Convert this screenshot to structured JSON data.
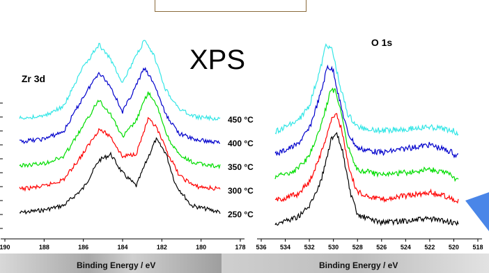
{
  "main_title": "XPS",
  "chart_data": [
    {
      "type": "line",
      "panel_label": "Zr 3d",
      "xlabel": "Binding Energy / eV",
      "ylabel": "",
      "xlim": [
        190,
        178
      ],
      "x_reversed": true,
      "xticks": [
        "190",
        "188",
        "186",
        "184",
        "182",
        "180",
        "178"
      ],
      "grid": false,
      "legend": "inline labels right of curves",
      "series": [
        {
          "name": "250 °C",
          "color": "#000000",
          "offset": 0,
          "points": [
            [
              190,
              0.0
            ],
            [
              188,
              0.06
            ],
            [
              187,
              0.12
            ],
            [
              186,
              0.35
            ],
            [
              185.2,
              0.72
            ],
            [
              184.6,
              0.8
            ],
            [
              184,
              0.55
            ],
            [
              183.3,
              0.38
            ],
            [
              182.8,
              0.7
            ],
            [
              182.3,
              1.0
            ],
            [
              181.8,
              0.82
            ],
            [
              181.3,
              0.4
            ],
            [
              180.5,
              0.12
            ],
            [
              179,
              0.03
            ],
            [
              178.5,
              0.0
            ]
          ]
        },
        {
          "name": "300 °C",
          "color": "#ff0000",
          "offset": 1,
          "points": [
            [
              190,
              0.0
            ],
            [
              188,
              0.06
            ],
            [
              187,
              0.15
            ],
            [
              186,
              0.5
            ],
            [
              185.2,
              0.82
            ],
            [
              184.6,
              0.72
            ],
            [
              184,
              0.45
            ],
            [
              183.3,
              0.5
            ],
            [
              182.7,
              0.95
            ],
            [
              182.3,
              0.85
            ],
            [
              181.7,
              0.5
            ],
            [
              181.1,
              0.2
            ],
            [
              180.3,
              0.06
            ],
            [
              179,
              0.02
            ],
            [
              178.5,
              0.0
            ]
          ]
        },
        {
          "name": "350 °C",
          "color": "#00dd00",
          "offset": 2,
          "points": [
            [
              190,
              0.0
            ],
            [
              188,
              0.05
            ],
            [
              187,
              0.14
            ],
            [
              186,
              0.55
            ],
            [
              185.2,
              0.9
            ],
            [
              184.6,
              0.7
            ],
            [
              184,
              0.4
            ],
            [
              183.3,
              0.62
            ],
            [
              182.7,
              1.0
            ],
            [
              182.2,
              0.78
            ],
            [
              181.7,
              0.4
            ],
            [
              181.1,
              0.15
            ],
            [
              180.3,
              0.05
            ],
            [
              179,
              0.01
            ],
            [
              178.5,
              0.0
            ]
          ]
        },
        {
          "name": "400 °C",
          "color": "#0000cc",
          "offset": 3,
          "points": [
            [
              190,
              0.0
            ],
            [
              188,
              0.06
            ],
            [
              187,
              0.16
            ],
            [
              186,
              0.62
            ],
            [
              185.2,
              0.95
            ],
            [
              184.6,
              0.75
            ],
            [
              184,
              0.42
            ],
            [
              183.4,
              0.72
            ],
            [
              182.9,
              1.0
            ],
            [
              182.4,
              0.8
            ],
            [
              181.8,
              0.38
            ],
            [
              181.1,
              0.13
            ],
            [
              180.3,
              0.05
            ],
            [
              179,
              0.01
            ],
            [
              178.5,
              0.0
            ]
          ]
        },
        {
          "name": "450 °C",
          "color": "#33e6e6",
          "offset": 4,
          "points": [
            [
              190,
              0.0
            ],
            [
              188,
              0.05
            ],
            [
              187,
              0.18
            ],
            [
              186,
              0.7
            ],
            [
              185.2,
              1.0
            ],
            [
              184.6,
              0.8
            ],
            [
              184,
              0.5
            ],
            [
              183.4,
              0.8
            ],
            [
              182.9,
              1.05
            ],
            [
              182.4,
              0.85
            ],
            [
              181.8,
              0.4
            ],
            [
              181.1,
              0.14
            ],
            [
              180.3,
              0.04
            ],
            [
              179,
              0.01
            ],
            [
              178.5,
              0.0
            ]
          ]
        }
      ]
    },
    {
      "type": "line",
      "panel_label": "O 1s",
      "xlabel": "Binding Energy / eV",
      "ylabel": "",
      "xlim": [
        536,
        518
      ],
      "x_reversed": true,
      "xticks": [
        "536",
        "534",
        "532",
        "530",
        "528",
        "526",
        "524",
        "522",
        "520",
        "518"
      ],
      "grid": false,
      "series": [
        {
          "name": "250 °C",
          "color": "#000000",
          "offset": 0,
          "points": [
            [
              535,
              0.0
            ],
            [
              533,
              0.08
            ],
            [
              532,
              0.2
            ],
            [
              531,
              0.5
            ],
            [
              530.2,
              0.95
            ],
            [
              529.7,
              1.0
            ],
            [
              529.2,
              0.8
            ],
            [
              528.6,
              0.35
            ],
            [
              528,
              0.1
            ],
            [
              526,
              0.02
            ],
            [
              522,
              0.06
            ],
            [
              520,
              0.02
            ]
          ]
        },
        {
          "name": "300 °C",
          "color": "#ff0000",
          "offset": 1,
          "points": [
            [
              535,
              0.0
            ],
            [
              533,
              0.08
            ],
            [
              532,
              0.22
            ],
            [
              531,
              0.55
            ],
            [
              530.2,
              0.9
            ],
            [
              529.8,
              1.0
            ],
            [
              529.3,
              0.8
            ],
            [
              528.7,
              0.35
            ],
            [
              528,
              0.1
            ],
            [
              526,
              0.02
            ],
            [
              522,
              0.1
            ],
            [
              520,
              0.03
            ]
          ]
        },
        {
          "name": "350 °C",
          "color": "#00dd00",
          "offset": 2,
          "points": [
            [
              535,
              0.0
            ],
            [
              533,
              0.1
            ],
            [
              532,
              0.25
            ],
            [
              531,
              0.6
            ],
            [
              530.3,
              0.95
            ],
            [
              529.9,
              1.0
            ],
            [
              529.4,
              0.78
            ],
            [
              528.8,
              0.35
            ],
            [
              528,
              0.1
            ],
            [
              526,
              0.03
            ],
            [
              522,
              0.1
            ],
            [
              520,
              0.03
            ]
          ]
        },
        {
          "name": "400 °C",
          "color": "#0000cc",
          "offset": 3,
          "points": [
            [
              535,
              0.0
            ],
            [
              533,
              0.12
            ],
            [
              532,
              0.3
            ],
            [
              531,
              0.72
            ],
            [
              530.5,
              1.0
            ],
            [
              530,
              0.95
            ],
            [
              529.5,
              0.62
            ],
            [
              528.8,
              0.25
            ],
            [
              528,
              0.08
            ],
            [
              526,
              0.03
            ],
            [
              522,
              0.12
            ],
            [
              520,
              0.03
            ]
          ]
        },
        {
          "name": "450 °C",
          "color": "#33e6e6",
          "offset": 4,
          "points": [
            [
              535,
              0.0
            ],
            [
              533,
              0.12
            ],
            [
              532,
              0.3
            ],
            [
              531,
              0.75
            ],
            [
              530.6,
              1.0
            ],
            [
              530.1,
              0.92
            ],
            [
              529.5,
              0.55
            ],
            [
              528.8,
              0.2
            ],
            [
              528,
              0.06
            ],
            [
              526,
              0.02
            ],
            [
              522,
              0.06
            ],
            [
              520,
              0.02
            ]
          ]
        }
      ]
    }
  ]
}
